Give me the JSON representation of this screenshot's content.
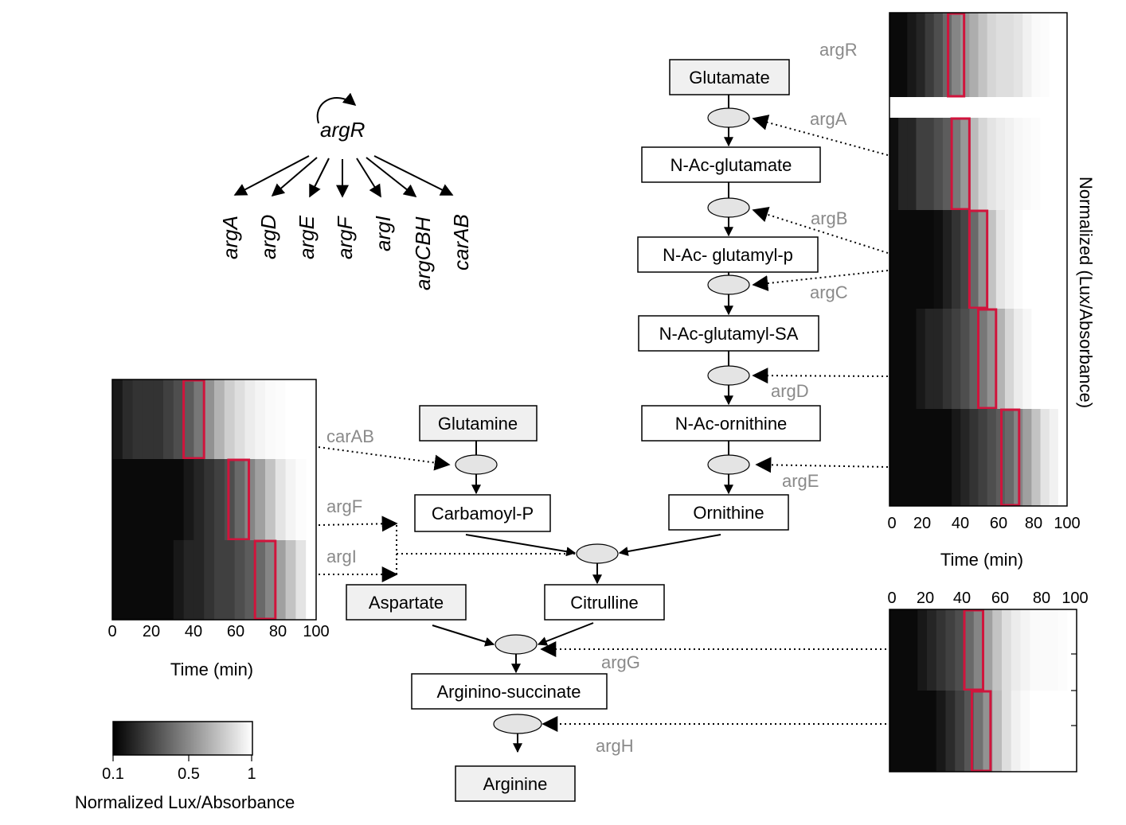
{
  "colors": {
    "highlight": "#d0143c",
    "gene_label": "#8a8a8a",
    "metabolite_shaded": "#f0f0f0",
    "enzyme": "#e4e4e4"
  },
  "regulon": {
    "regulator": "argR",
    "targets": [
      "argA",
      "argD",
      "argE",
      "argF",
      "argI",
      "argCBH",
      "carAB"
    ]
  },
  "pathway": {
    "glutamate": "Glutamate",
    "n_ac_glutamate": "N-Ac-glutamate",
    "n_ac_glutamyl_p": "N-Ac- glutamyl-p",
    "n_ac_glutamyl_sa": "N-Ac-glutamyl-SA",
    "n_ac_ornithine": "N-Ac-ornithine",
    "ornithine": "Ornithine",
    "glutamine": "Glutamine",
    "carbamoyl_p": "Carbamoyl-P",
    "citrulline": "Citrulline",
    "aspartate": "Aspartate",
    "argininosuccinate": "Arginino-succinate",
    "arginine": "Arginine"
  },
  "genes": {
    "argR": "argR",
    "argA": "argA",
    "argB": "argB",
    "argC": "argC",
    "argD": "argD",
    "argE": "argE",
    "carAB": "carAB",
    "argF": "argF",
    "argI": "argI",
    "argG": "argG",
    "argH": "argH"
  },
  "heatmap_axis": {
    "ticks": [
      "0",
      "20",
      "40",
      "60",
      "80",
      "100"
    ],
    "title": "Time (min)",
    "side_title": "Normalized (Lux/Absorbance)"
  },
  "colorbar": {
    "ticks": [
      "0.1",
      "0.5",
      "1"
    ],
    "title": "Normalized Lux/Absorbance",
    "range": [
      0.1,
      1
    ]
  },
  "chart_data": {
    "type": "heatmap",
    "x_range_min": [
      0,
      100
    ],
    "value_range": [
      0.1,
      1
    ],
    "highlight_meaning": "red box marks induction window",
    "rows": [
      {
        "gene": "argR",
        "highlight_min": [
          33,
          42
        ],
        "values": [
          0.05,
          0.1,
          0.15,
          0.2,
          0.28,
          0.35,
          0.45,
          0.55,
          0.62,
          0.7,
          0.78,
          0.85,
          0.88,
          0.88,
          0.9,
          0.95,
          0.98,
          0.99,
          1,
          1
        ]
      },
      {
        "gene": "argA",
        "highlight_min": [
          35,
          45
        ],
        "values": [
          0.12,
          0.2,
          0.2,
          0.3,
          0.3,
          0.35,
          0.4,
          0.5,
          0.62,
          0.75,
          0.85,
          0.9,
          0.93,
          0.95,
          0.97,
          0.98,
          0.99,
          1,
          1,
          1
        ]
      },
      {
        "gene": "argB",
        "highlight_min": [
          45,
          55
        ],
        "values": [
          0.05,
          0.05,
          0.05,
          0.05,
          0.1,
          0.12,
          0.18,
          0.25,
          0.32,
          0.45,
          0.6,
          0.78,
          0.9,
          0.95,
          0.98,
          1,
          1,
          1,
          1,
          1
        ]
      },
      {
        "gene": "argC",
        "highlight_min": [
          50,
          60
        ],
        "values": [
          0.05,
          0.05,
          0.08,
          0.15,
          0.2,
          0.2,
          0.25,
          0.3,
          0.35,
          0.42,
          0.5,
          0.6,
          0.72,
          0.85,
          0.93,
          0.97,
          1,
          1,
          1,
          1
        ]
      },
      {
        "gene": "argE",
        "highlight_min": [
          63,
          73
        ],
        "values": [
          0.05,
          0.05,
          0.05,
          0.05,
          0.05,
          0.05,
          0.1,
          0.15,
          0.2,
          0.25,
          0.3,
          0.35,
          0.4,
          0.45,
          0.55,
          0.65,
          0.78,
          0.9,
          0.95,
          1
        ]
      },
      {
        "gene": "carAB",
        "highlight_min": [
          35,
          45
        ],
        "values": [
          0.15,
          0.22,
          0.25,
          0.25,
          0.25,
          0.3,
          0.35,
          0.4,
          0.5,
          0.6,
          0.72,
          0.82,
          0.88,
          0.93,
          0.96,
          0.98,
          0.99,
          1,
          1,
          1
        ]
      },
      {
        "gene": "argF",
        "highlight_min": [
          57,
          67
        ],
        "values": [
          0.03,
          0.03,
          0.03,
          0.03,
          0.03,
          0.05,
          0.08,
          0.15,
          0.2,
          0.25,
          0.3,
          0.35,
          0.45,
          0.55,
          0.65,
          0.78,
          0.9,
          0.96,
          0.99,
          1
        ]
      },
      {
        "gene": "argI",
        "highlight_min": [
          70,
          80
        ],
        "values": [
          0.05,
          0.05,
          0.05,
          0.05,
          0.05,
          0.1,
          0.15,
          0.2,
          0.2,
          0.25,
          0.3,
          0.3,
          0.35,
          0.4,
          0.45,
          0.55,
          0.65,
          0.78,
          0.9,
          1
        ]
      },
      {
        "gene": "argG",
        "highlight_min": [
          40,
          50
        ],
        "values": [
          0.03,
          0.03,
          0.08,
          0.15,
          0.2,
          0.25,
          0.3,
          0.35,
          0.45,
          0.55,
          0.65,
          0.78,
          0.88,
          0.93,
          0.96,
          0.98,
          0.98,
          0.98,
          0.99,
          1
        ]
      },
      {
        "gene": "argH",
        "highlight_min": [
          44,
          54
        ],
        "values": [
          0.03,
          0.03,
          0.03,
          0.03,
          0.08,
          0.15,
          0.22,
          0.3,
          0.38,
          0.48,
          0.6,
          0.75,
          0.88,
          0.95,
          0.98,
          1,
          1,
          1,
          1,
          1
        ]
      }
    ]
  }
}
